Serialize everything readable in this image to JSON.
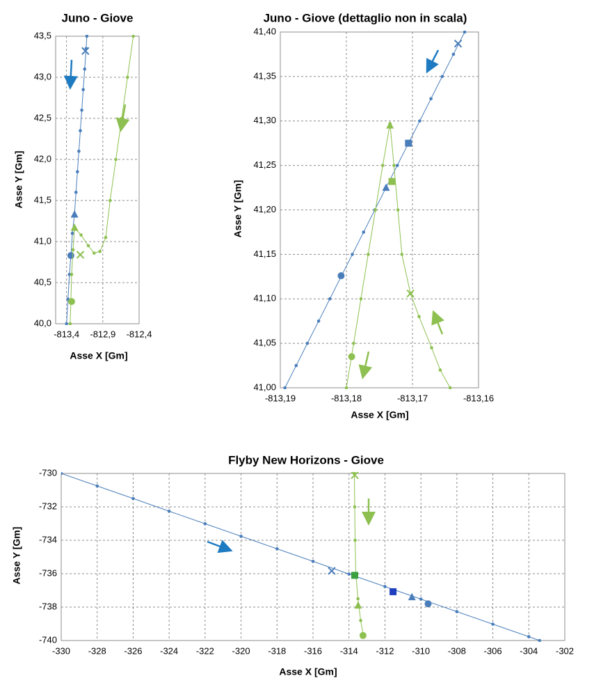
{
  "chart_data": [
    {
      "type": "line",
      "title": "Juno - Giove",
      "x_label": "Asse X [Gm]",
      "y_label": "Asse Y [Gm]",
      "grid": true,
      "xlim": [
        -813.55,
        -812.4
      ],
      "xticks": [
        {
          "value": -813.4,
          "label": "-813,4"
        },
        {
          "value": -812.9,
          "label": "-812,9"
        },
        {
          "value": -812.4,
          "label": "-812,4"
        }
      ],
      "ylim": [
        40.0,
        43.5
      ],
      "yticks": [
        {
          "value": 40.0,
          "label": "40,0"
        },
        {
          "value": 40.5,
          "label": "40,5"
        },
        {
          "value": 41.0,
          "label": "41,0"
        },
        {
          "value": 41.5,
          "label": "41,5"
        },
        {
          "value": 42.0,
          "label": "42,0"
        },
        {
          "value": 42.5,
          "label": "42,5"
        },
        {
          "value": 43.0,
          "label": "43,0"
        },
        {
          "value": 43.5,
          "label": "43,5"
        }
      ],
      "series": [
        {
          "color": "#4a7ebb",
          "x": [
            -813.4,
            -813.38,
            -813.36,
            -813.34,
            -813.32,
            -813.29,
            -813.27,
            -813.25,
            -813.23,
            -813.21,
            -813.19,
            -813.17,
            -813.15,
            -813.13,
            -813.12
          ],
          "values": [
            40.0,
            40.3,
            40.6,
            40.83,
            41.1,
            41.33,
            41.6,
            41.85,
            42.1,
            42.35,
            42.6,
            42.85,
            43.1,
            43.35,
            43.5
          ],
          "markers": [
            {
              "shape": "x",
              "x": -813.14,
              "y": 43.32
            },
            {
              "shape": "triangle",
              "x": -813.29,
              "y": 41.33
            },
            {
              "shape": "circle",
              "x": -813.34,
              "y": 40.83
            }
          ]
        },
        {
          "color": "#8dc050",
          "x": [
            -812.48,
            -812.56,
            -812.64,
            -812.72,
            -812.8,
            -812.86,
            -812.94,
            -813.02,
            -813.1,
            -813.2,
            -813.29,
            -813.31,
            -813.33,
            -813.34,
            -813.35
          ],
          "values": [
            43.5,
            43.0,
            42.5,
            42.0,
            41.5,
            41.05,
            40.88,
            40.86,
            40.95,
            41.08,
            41.17,
            40.9,
            40.6,
            40.27,
            40.0
          ],
          "markers": [
            {
              "shape": "x",
              "x": -813.21,
              "y": 40.84
            },
            {
              "shape": "triangle",
              "x": -813.29,
              "y": 41.17
            },
            {
              "shape": "circle",
              "x": -813.33,
              "y": 40.27
            }
          ]
        }
      ]
    },
    {
      "type": "line",
      "title": "Juno - Giove (dettaglio non in scala)",
      "x_label": "Asse X [Gm]",
      "y_label": "Asse Y [Gm]",
      "grid": true,
      "xlim": [
        -813.19,
        -813.16
      ],
      "xticks": [
        {
          "value": -813.19,
          "label": "-813,19"
        },
        {
          "value": -813.18,
          "label": "-813,18"
        },
        {
          "value": -813.17,
          "label": "-813,17"
        },
        {
          "value": -813.16,
          "label": "-813,16"
        }
      ],
      "ylim": [
        41.0,
        41.4
      ],
      "yticks": [
        {
          "value": 41.0,
          "label": "41,00"
        },
        {
          "value": 41.05,
          "label": "41,05"
        },
        {
          "value": 41.1,
          "label": "41,10"
        },
        {
          "value": 41.15,
          "label": "41,15"
        },
        {
          "value": 41.2,
          "label": "41,20"
        },
        {
          "value": 41.25,
          "label": "41,25"
        },
        {
          "value": 41.3,
          "label": "41,30"
        },
        {
          "value": 41.35,
          "label": "41,35"
        },
        {
          "value": 41.4,
          "label": "41,40"
        }
      ],
      "series": [
        {
          "color": "#4a7ebb",
          "x": [
            -813.1893,
            -813.1876,
            -813.1859,
            -813.1842,
            -813.1825,
            -813.1808,
            -813.1791,
            -813.1774,
            -813.1757,
            -813.174,
            -813.1723,
            -813.1706,
            -813.1689,
            -813.1672,
            -813.1655,
            -813.1638,
            -813.1621
          ],
          "values": [
            41.0,
            41.025,
            41.05,
            41.075,
            41.1,
            41.125,
            41.15,
            41.175,
            41.2,
            41.225,
            41.25,
            41.275,
            41.3,
            41.325,
            41.35,
            41.375,
            41.4
          ],
          "markers": [
            {
              "shape": "x",
              "x": -813.1631,
              "y": 41.387
            },
            {
              "shape": "square",
              "x": -813.1706,
              "y": 41.275
            },
            {
              "shape": "triangle",
              "x": -813.174,
              "y": 41.225
            },
            {
              "shape": "circle",
              "x": -813.1808,
              "y": 41.126
            }
          ]
        },
        {
          "color": "#8dc050",
          "x": [
            -813.18,
            -813.1789,
            -813.1778,
            -813.1767,
            -813.1756,
            -813.1745,
            -813.1734,
            -813.1728,
            -813.1722,
            -813.1716,
            -813.1703,
            -813.169,
            -813.1671,
            -813.1658,
            -813.1643
          ],
          "values": [
            41.0,
            41.05,
            41.1,
            41.15,
            41.2,
            41.25,
            41.297,
            41.25,
            41.2,
            41.15,
            41.106,
            41.08,
            41.045,
            41.02,
            41.0
          ],
          "markers": [
            {
              "shape": "triangle",
              "x": -813.1734,
              "y": 41.295
            },
            {
              "shape": "square",
              "x": -813.1731,
              "y": 41.232
            },
            {
              "shape": "x",
              "x": -813.1703,
              "y": 41.106
            },
            {
              "shape": "circle",
              "x": -813.1792,
              "y": 41.035
            }
          ]
        }
      ]
    },
    {
      "type": "line",
      "title": "Flyby New Horizons - Giove",
      "x_label": "Asse X [Gm]",
      "y_label": "Asse Y [Gm]",
      "grid": true,
      "xlim": [
        -330,
        -302
      ],
      "xticks": [
        -330,
        -328,
        -326,
        -324,
        -322,
        -320,
        -318,
        -316,
        -314,
        -312,
        -310,
        -308,
        -306,
        -304,
        -302
      ],
      "ylim": [
        -740,
        -730
      ],
      "yticks": [
        -740,
        -738,
        -736,
        -734,
        -732,
        -730
      ],
      "series": [
        {
          "color": "#4a7ebb",
          "x": [
            -330,
            -328,
            -326,
            -324,
            -322,
            -320,
            -318,
            -316,
            -314,
            -312,
            -310,
            -308,
            -306,
            -304,
            -303.4
          ],
          "values": [
            -730,
            -730.75,
            -731.5,
            -732.26,
            -733.01,
            -733.76,
            -734.51,
            -735.26,
            -736.02,
            -736.77,
            -737.52,
            -738.27,
            -739.02,
            -739.77,
            -740
          ],
          "markers": [
            {
              "shape": "x",
              "x": -314.96,
              "y": -735.83
            },
            {
              "shape": "square",
              "x": -311.55,
              "y": -737.08,
              "color": "#1f3fbf"
            },
            {
              "shape": "triangle",
              "x": -310.5,
              "y": -737.4
            },
            {
              "shape": "circle",
              "x": -309.6,
              "y": -737.8
            }
          ]
        },
        {
          "color": "#8dc050",
          "x": [
            -313.7,
            -313.68,
            -313.66,
            -313.62,
            -313.5,
            -313.35,
            -313.2
          ],
          "values": [
            -730,
            -732,
            -734,
            -736,
            -737.5,
            -738.8,
            -739.7
          ],
          "markers": [
            {
              "shape": "x",
              "x": -313.68,
              "y": -730.1
            },
            {
              "shape": "square",
              "x": -313.68,
              "y": -736.1,
              "color": "#3aa040"
            },
            {
              "shape": "triangle",
              "x": -313.49,
              "y": -737.9
            },
            {
              "shape": "circle",
              "x": -313.22,
              "y": -739.7
            }
          ]
        }
      ]
    }
  ]
}
